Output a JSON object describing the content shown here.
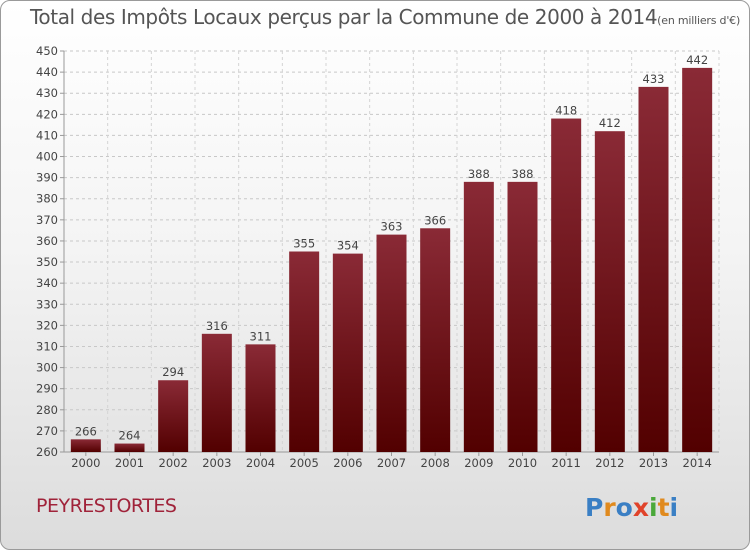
{
  "header": {
    "title": "Total des Impôts Locaux perçus par la Commune de 2000 à 2014",
    "unit": "(en milliers d'€)"
  },
  "footer": {
    "commune": "PEYRESTORTES",
    "logo_text": "Proxiti"
  },
  "colors": {
    "bar_top": "#8a2a36",
    "bar_bottom": "#520000",
    "label_text": "#444444",
    "commune_text": "#a0233a"
  },
  "chart_data": {
    "type": "bar",
    "categories": [
      "2000",
      "2001",
      "2002",
      "2003",
      "2004",
      "2005",
      "2006",
      "2007",
      "2008",
      "2009",
      "2010",
      "2011",
      "2012",
      "2013",
      "2014"
    ],
    "values": [
      266,
      264,
      294,
      316,
      311,
      355,
      354,
      363,
      366,
      388,
      388,
      418,
      412,
      433,
      442
    ],
    "data_labels": [
      "266",
      "264",
      "294",
      "316",
      "311",
      "355",
      "354",
      "363",
      "366",
      "388",
      "388",
      "418",
      "412",
      "433",
      "442"
    ],
    "ylim": [
      260,
      450
    ],
    "yticks": [
      260,
      270,
      280,
      290,
      300,
      310,
      320,
      330,
      340,
      350,
      360,
      370,
      380,
      390,
      400,
      410,
      420,
      430,
      440,
      450
    ],
    "grid": "horizontal-dashed",
    "legend": "none"
  }
}
